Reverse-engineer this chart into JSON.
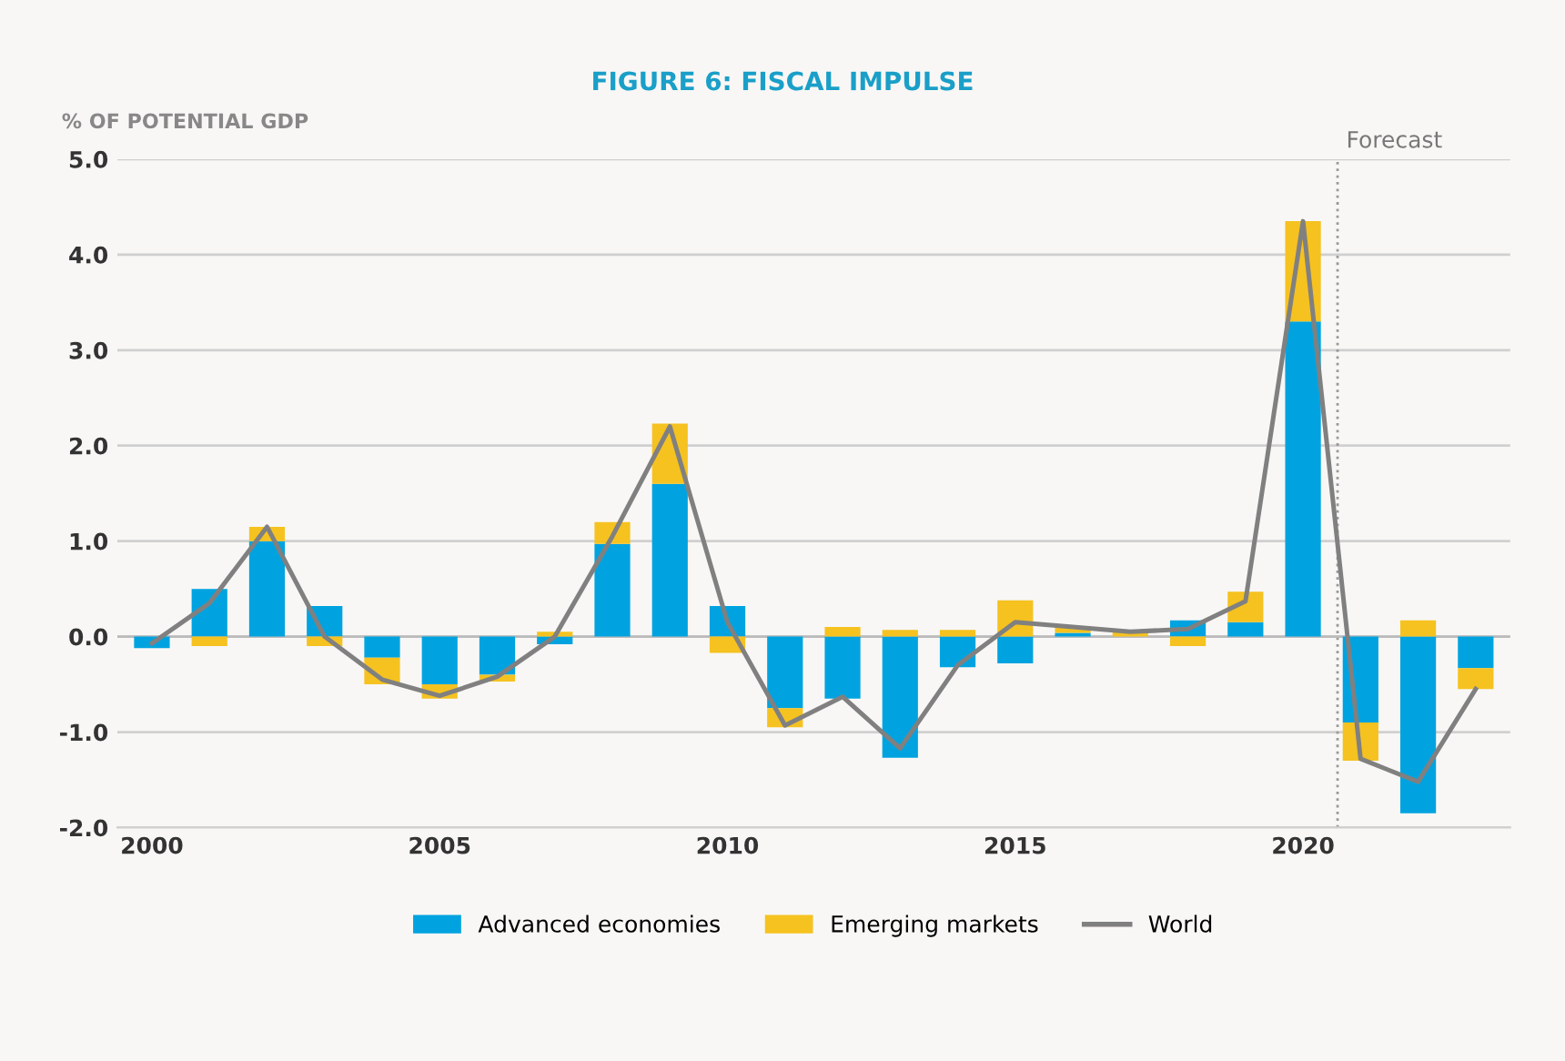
{
  "chart_data": {
    "type": "bar",
    "title": "FIGURE 6: FISCAL IMPULSE",
    "ylabel": "% OF POTENTIAL GDP",
    "x": [
      2000,
      2001,
      2002,
      2003,
      2004,
      2005,
      2006,
      2007,
      2008,
      2009,
      2010,
      2011,
      2012,
      2013,
      2014,
      2015,
      2016,
      2017,
      2018,
      2019,
      2020,
      2021,
      2022,
      2023
    ],
    "stacked": true,
    "series": [
      {
        "name": "Advanced economies",
        "color": "#00a3e0",
        "values": [
          -0.12,
          0.5,
          1.0,
          0.32,
          -0.22,
          -0.5,
          -0.4,
          -0.08,
          0.97,
          1.6,
          0.32,
          -0.75,
          -0.65,
          -1.27,
          -0.32,
          -0.28,
          0.04,
          0.0,
          0.17,
          0.15,
          3.3,
          -0.9,
          -1.85,
          -0.33
        ]
      },
      {
        "name": "Emerging markets",
        "color": "#f5c220",
        "values": [
          0.0,
          -0.1,
          0.15,
          -0.1,
          -0.28,
          -0.15,
          -0.07,
          0.05,
          0.23,
          0.63,
          -0.17,
          -0.2,
          0.1,
          0.07,
          0.07,
          0.38,
          0.07,
          0.07,
          -0.1,
          0.32,
          1.05,
          -0.4,
          0.17,
          -0.22
        ]
      },
      {
        "name": "World",
        "type": "line",
        "color": "#808080",
        "values": [
          -0.07,
          0.35,
          1.15,
          0.0,
          -0.45,
          -0.62,
          -0.42,
          0.0,
          1.05,
          2.2,
          0.15,
          -0.93,
          -0.63,
          -1.17,
          -0.3,
          0.15,
          0.1,
          0.05,
          0.08,
          0.37,
          4.35,
          -1.28,
          -1.52,
          -0.55
        ]
      }
    ],
    "xlim": [
      1999.4,
      2023.6
    ],
    "xticks": [
      2000,
      2005,
      2010,
      2015,
      2020
    ],
    "ylim": [
      -2.0,
      5.0
    ],
    "yticks": [
      {
        "value": -2.0,
        "label": "-2.0"
      },
      {
        "value": -1.0,
        "label": "-1.0"
      },
      {
        "value": 0.0,
        "label": "0.0"
      },
      {
        "value": 1.0,
        "label": "1.0"
      },
      {
        "value": 2.0,
        "label": "2.0"
      },
      {
        "value": 3.0,
        "label": "3.0"
      },
      {
        "value": 4.0,
        "label": "4.0"
      },
      {
        "value": 5.0,
        "label": "5.0"
      }
    ],
    "ref_lines": [
      {
        "axis": "x",
        "value": 2020.6,
        "label": "Forecast",
        "color": "#999999",
        "line_style": "dotted"
      }
    ],
    "grid": "y",
    "legend": "bottom",
    "marker": "none",
    "line_style": "solid"
  }
}
